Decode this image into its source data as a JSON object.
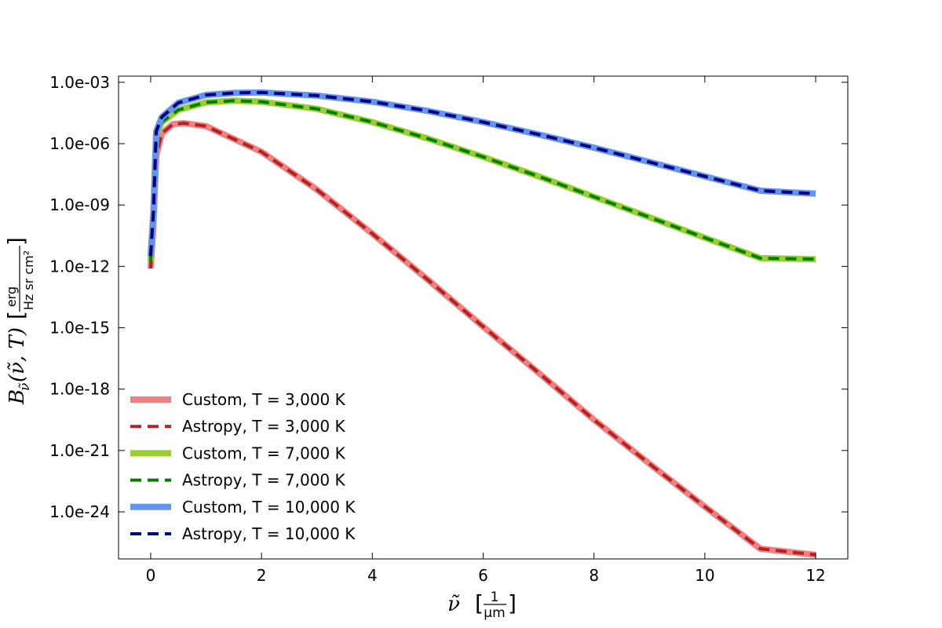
{
  "chart_data": {
    "type": "line",
    "title": "",
    "xlabel": "ν̃",
    "xlabel_unit": "1 / μm",
    "ylabel": "B_ν̃(ν̃, T)",
    "ylabel_unit": "erg / (Hz sr cm²)",
    "xlim": [
      -0.58,
      12.58
    ],
    "ylim_log10": [
      -26.3,
      -2.7
    ],
    "yscale": "log",
    "grid": false,
    "legend_position": "lower-left",
    "x_ticks": [
      0,
      2,
      4,
      6,
      8,
      10,
      12
    ],
    "x_tick_labels": [
      "0",
      "2",
      "4",
      "6",
      "8",
      "10",
      "12"
    ],
    "y_ticks_log10": [
      -3,
      -6,
      -9,
      -12,
      -15,
      -18,
      -21,
      -24
    ],
    "y_tick_labels": [
      "1.0e-03",
      "1.0e-06",
      "1.0e-09",
      "1.0e-12",
      "1.0e-15",
      "1.0e-18",
      "1.0e-21",
      "1.0e-24"
    ],
    "series": [
      {
        "name": "Custom, T = 3,000 K",
        "color": "#f08080",
        "style": "solid",
        "x": [
          0.0,
          0.05,
          0.1,
          0.2,
          0.4,
          0.6,
          1,
          2,
          3,
          4,
          5,
          6,
          7,
          8,
          9,
          10,
          11,
          12
        ],
        "y_log10": [
          -12.1,
          -10.0,
          -6.6,
          -5.5,
          -5.05,
          -5.0,
          -5.15,
          -6.4,
          -8.25,
          -10.4,
          -12.65,
          -14.95,
          -17.2,
          -19.5,
          -21.65,
          -23.75,
          -25.8,
          -26.1
        ]
      },
      {
        "name": "Astropy, T = 3,000 K",
        "color": "#b22222",
        "style": "dashed",
        "x": [
          0.0,
          0.05,
          0.1,
          0.2,
          0.4,
          0.6,
          1,
          2,
          3,
          4,
          5,
          6,
          7,
          8,
          9,
          10,
          11,
          12
        ],
        "y_log10": [
          -12.1,
          -10.0,
          -6.6,
          -5.5,
          -5.05,
          -5.0,
          -5.15,
          -6.4,
          -8.25,
          -10.4,
          -12.65,
          -14.95,
          -17.2,
          -19.5,
          -21.65,
          -23.75,
          -25.8,
          -26.1
        ]
      },
      {
        "name": "Custom, T = 7,000 K",
        "color": "#9acd32",
        "style": "solid",
        "x": [
          0.0,
          0.05,
          0.1,
          0.2,
          0.5,
          1,
          1.5,
          2,
          3,
          4,
          5,
          6,
          7,
          8,
          9,
          10,
          11,
          12
        ],
        "y_log10": [
          -11.75,
          -9.5,
          -5.6,
          -4.95,
          -4.35,
          -3.98,
          -3.9,
          -3.95,
          -4.3,
          -4.95,
          -5.75,
          -6.65,
          -7.6,
          -8.6,
          -9.6,
          -10.6,
          -11.6,
          -11.65
        ]
      },
      {
        "name": "Astropy, T = 7,000 K",
        "color": "#008000",
        "style": "dashed",
        "x": [
          0.0,
          0.05,
          0.1,
          0.2,
          0.5,
          1,
          1.5,
          2,
          3,
          4,
          5,
          6,
          7,
          8,
          9,
          10,
          11,
          12
        ],
        "y_log10": [
          -11.75,
          -9.5,
          -5.6,
          -4.95,
          -4.35,
          -3.98,
          -3.9,
          -3.95,
          -4.3,
          -4.95,
          -5.75,
          -6.65,
          -7.6,
          -8.6,
          -9.6,
          -10.6,
          -11.6,
          -11.65
        ]
      },
      {
        "name": "Custom, T = 10,000 K",
        "color": "#6495ed",
        "style": "solid",
        "x": [
          0.0,
          0.05,
          0.1,
          0.2,
          0.5,
          1,
          1.5,
          2,
          3,
          4,
          5,
          6,
          7,
          8,
          9,
          10,
          11,
          12
        ],
        "y_log10": [
          -11.5,
          -9.3,
          -5.4,
          -4.7,
          -4.0,
          -3.62,
          -3.52,
          -3.5,
          -3.65,
          -3.95,
          -4.4,
          -4.95,
          -5.55,
          -6.2,
          -6.9,
          -7.6,
          -8.3,
          -8.45
        ]
      },
      {
        "name": "Astropy, T = 10,000 K",
        "color": "#000080",
        "style": "dashed",
        "x": [
          0.0,
          0.05,
          0.1,
          0.2,
          0.5,
          1,
          1.5,
          2,
          3,
          4,
          5,
          6,
          7,
          8,
          9,
          10,
          11,
          12
        ],
        "y_log10": [
          -11.5,
          -9.3,
          -5.4,
          -4.7,
          -4.0,
          -3.62,
          -3.52,
          -3.5,
          -3.65,
          -3.95,
          -4.4,
          -4.95,
          -5.55,
          -6.2,
          -6.9,
          -7.6,
          -8.3,
          -8.45
        ]
      }
    ]
  }
}
